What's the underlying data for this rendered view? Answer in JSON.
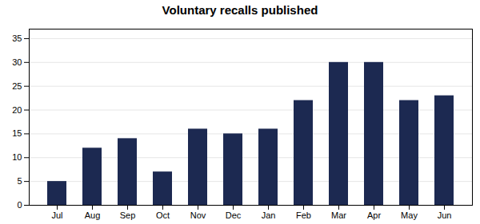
{
  "chart_data": {
    "type": "bar",
    "title": "Voluntary recalls published",
    "categories": [
      "Jul",
      "Aug",
      "Sep",
      "Oct",
      "Nov",
      "Dec",
      "Jan",
      "Feb",
      "Mar",
      "Apr",
      "May",
      "Jun"
    ],
    "values": [
      5,
      12,
      14,
      7,
      16,
      15,
      16,
      22,
      30,
      30,
      22,
      23
    ],
    "color": "#1c2951",
    "ylim": [
      0,
      37
    ],
    "yticks": [
      0,
      5,
      10,
      15,
      20,
      25,
      30,
      35
    ],
    "grid": true
  }
}
